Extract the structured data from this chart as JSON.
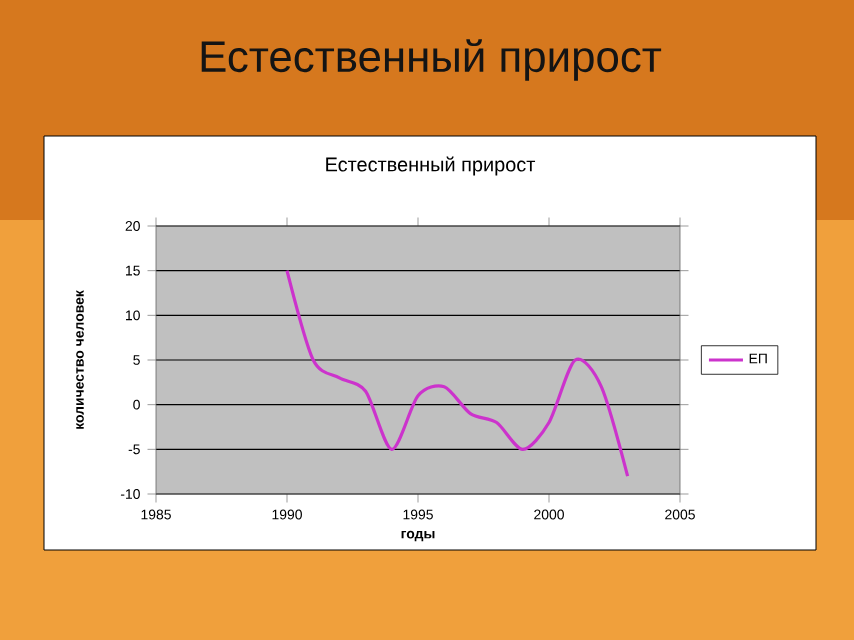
{
  "chart_data": {
    "type": "line",
    "title": "Естественный прирост",
    "subtitle": "Естественный прирост",
    "xlabel": "годы",
    "ylabel": "количество человек",
    "xlim": [
      1985,
      2005
    ],
    "xticks": [
      1985,
      1990,
      1995,
      2000,
      2005
    ],
    "ylim": [
      -10,
      20
    ],
    "yticks": [
      -10,
      -5,
      0,
      5,
      10,
      15,
      20
    ],
    "grid": "y",
    "legend": "right",
    "marker": "none",
    "line_style": "solid",
    "series": [
      {
        "name": "ЕП",
        "color": "#cc33cc",
        "x": [
          1990,
          1991,
          1992,
          1993,
          1994,
          1995,
          1996,
          1997,
          1998,
          1999,
          2000,
          2001,
          2002,
          2003
        ],
        "values": [
          15,
          5,
          3,
          1.5,
          -5,
          1,
          2,
          -1,
          -2,
          -5,
          -2,
          5,
          2,
          -8
        ]
      }
    ]
  }
}
